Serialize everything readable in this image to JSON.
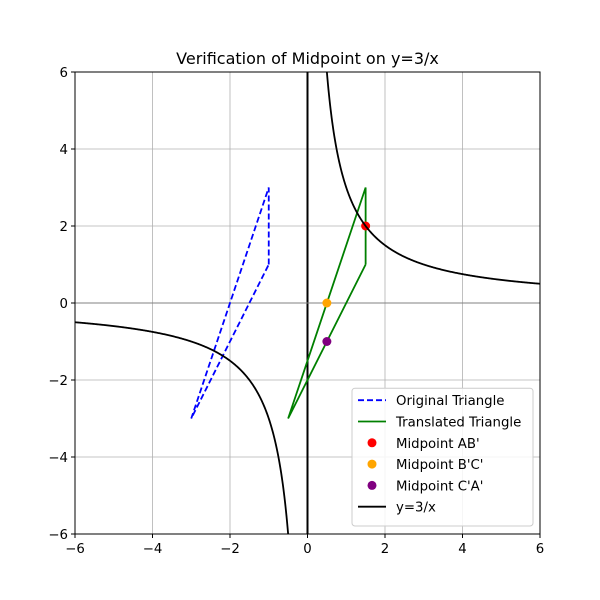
{
  "chart_data": {
    "type": "line",
    "title": "Verification of Midpoint on y=3/x",
    "xlabel": "",
    "ylabel": "",
    "xlim": [
      -6,
      6
    ],
    "ylim": [
      -6,
      6
    ],
    "x_ticks": [
      -6,
      -4,
      -2,
      0,
      2,
      4,
      6
    ],
    "y_ticks": [
      -6,
      -4,
      -2,
      0,
      2,
      4,
      6
    ],
    "x_tick_labels": [
      "−6",
      "−4",
      "−2",
      "0",
      "2",
      "4",
      "6"
    ],
    "y_tick_labels": [
      "−6",
      "−4",
      "−2",
      "0",
      "2",
      "4",
      "6"
    ],
    "grid": true,
    "legend_position": "lower-right",
    "series": [
      {
        "name": "Original Triangle",
        "kind": "line",
        "style": "dashed",
        "color": "#0000ff",
        "points": [
          [
            -1,
            1
          ],
          [
            -1,
            3
          ],
          [
            -3,
            -3
          ],
          [
            -1,
            1
          ]
        ]
      },
      {
        "name": "Translated Triangle",
        "kind": "line",
        "style": "solid",
        "color": "#008000",
        "points": [
          [
            1.5,
            1
          ],
          [
            1.5,
            3
          ],
          [
            -0.5,
            -3
          ],
          [
            1.5,
            1
          ]
        ]
      },
      {
        "name": "Midpoint AB'",
        "kind": "point",
        "color": "#ff0000",
        "points": [
          [
            1.5,
            2
          ]
        ]
      },
      {
        "name": "Midpoint B'C'",
        "kind": "point",
        "color": "#ffa500",
        "points": [
          [
            0.5,
            0
          ]
        ]
      },
      {
        "name": "Midpoint C'A'",
        "kind": "point",
        "color": "#800080",
        "points": [
          [
            0.5,
            -1
          ]
        ]
      },
      {
        "name": "y=3/x",
        "kind": "function",
        "style": "solid",
        "color": "#000000",
        "function": "3/x",
        "domain_segments": [
          [
            -6,
            -0.5
          ],
          [
            0.5,
            6
          ]
        ]
      }
    ],
    "reference_lines": [
      {
        "axis": "x",
        "value": 0,
        "color": "#000000",
        "style": "solid"
      },
      {
        "axis": "y",
        "value": 0,
        "color": "#808080",
        "style": "solid"
      }
    ]
  }
}
